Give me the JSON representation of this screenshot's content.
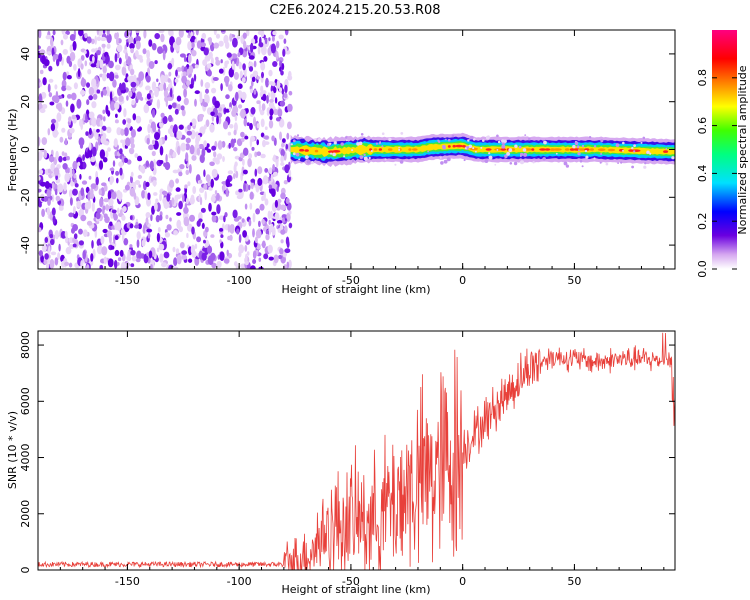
{
  "title": "C2E6.2024.215.20.53.R08",
  "chart_data": [
    {
      "type": "heatmap",
      "xlabel": "Height of straight line (km)",
      "ylabel": "Frequency (Hz)",
      "xlim": [
        -190,
        95
      ],
      "ylim": [
        -50,
        50
      ],
      "xticks": [
        -150,
        -100,
        -50,
        0,
        50
      ],
      "yticks": [
        -40,
        -20,
        0,
        20,
        40
      ],
      "colorbar": {
        "label": "Normalized spectral amplitude",
        "range": [
          0,
          1
        ],
        "ticks": [
          0.0,
          0.2,
          0.4,
          0.6,
          0.8
        ]
      },
      "noise_region": {
        "x": [
          -190,
          -77
        ],
        "y": [
          -50,
          50
        ]
      },
      "signal_center_line": [
        {
          "x": -77,
          "y": 0
        },
        {
          "x": -60,
          "y": -1
        },
        {
          "x": -45,
          "y": 0
        },
        {
          "x": -35,
          "y": 0
        },
        {
          "x": -20,
          "y": 0
        },
        {
          "x": -14,
          "y": 1
        },
        {
          "x": 0,
          "y": 1.5
        },
        {
          "x": 6,
          "y": 0
        },
        {
          "x": 30,
          "y": 0
        },
        {
          "x": 60,
          "y": 0
        },
        {
          "x": 95,
          "y": -1
        }
      ]
    },
    {
      "type": "line",
      "xlabel": "Height of straight line (km)",
      "ylabel": "SNR (10 * v/v)",
      "xlim": [
        -190,
        95
      ],
      "ylim": [
        0,
        8500
      ],
      "xticks": [
        -150,
        -100,
        -50,
        0,
        50
      ],
      "yticks": [
        0,
        2000,
        4000,
        6000,
        8000
      ],
      "color": "#e8403a",
      "trend": [
        {
          "x": -190,
          "y": 200
        },
        {
          "x": -80,
          "y": 200
        },
        {
          "x": -70,
          "y": 500
        },
        {
          "x": -60,
          "y": 1500
        },
        {
          "x": -50,
          "y": 1800
        },
        {
          "x": -40,
          "y": 1800
        },
        {
          "x": -30,
          "y": 2500
        },
        {
          "x": -20,
          "y": 3100
        },
        {
          "x": -10,
          "y": 3600
        },
        {
          "x": 0,
          "y": 4300
        },
        {
          "x": 10,
          "y": 5300
        },
        {
          "x": 20,
          "y": 6300
        },
        {
          "x": 30,
          "y": 7200
        },
        {
          "x": 40,
          "y": 7600
        },
        {
          "x": 50,
          "y": 7500
        },
        {
          "x": 60,
          "y": 7400
        },
        {
          "x": 70,
          "y": 7500
        },
        {
          "x": 80,
          "y": 7500
        },
        {
          "x": 95,
          "y": 7400
        }
      ]
    }
  ]
}
